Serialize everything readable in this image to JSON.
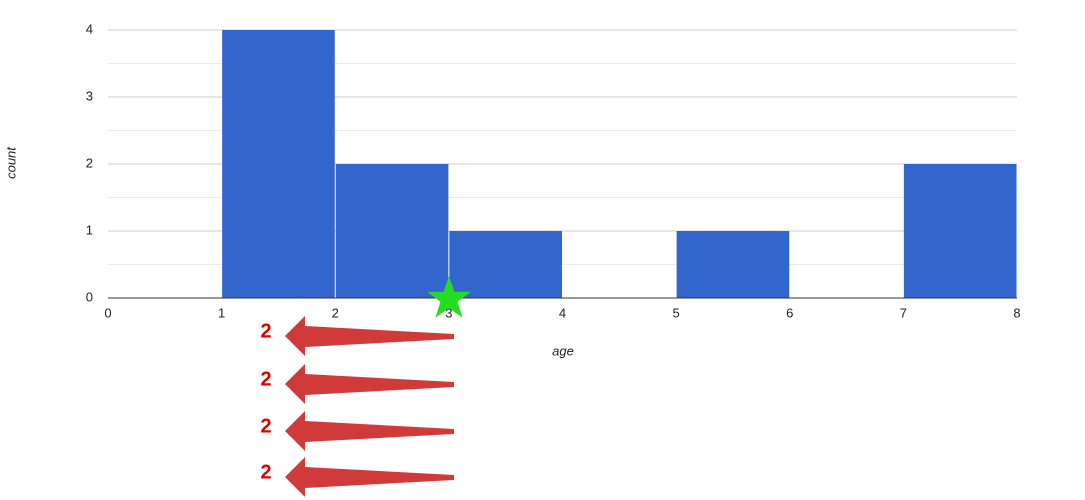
{
  "chart_data": {
    "type": "histogram",
    "xlabel": "age",
    "ylabel": "count",
    "bins": [
      0,
      1,
      2,
      3,
      4,
      5,
      6,
      7,
      8
    ],
    "values": [
      0,
      4,
      2,
      1,
      0,
      1,
      0,
      2
    ],
    "color": "#3366cc",
    "xlim": [
      0,
      8
    ],
    "xticks": [
      0,
      1,
      2,
      3,
      4,
      5,
      6,
      7,
      8
    ],
    "ylim": [
      0,
      4
    ],
    "yticks": [
      0,
      1,
      2,
      3,
      4
    ],
    "grid": true,
    "annotations": [
      "2",
      "2",
      "2",
      "2"
    ]
  }
}
